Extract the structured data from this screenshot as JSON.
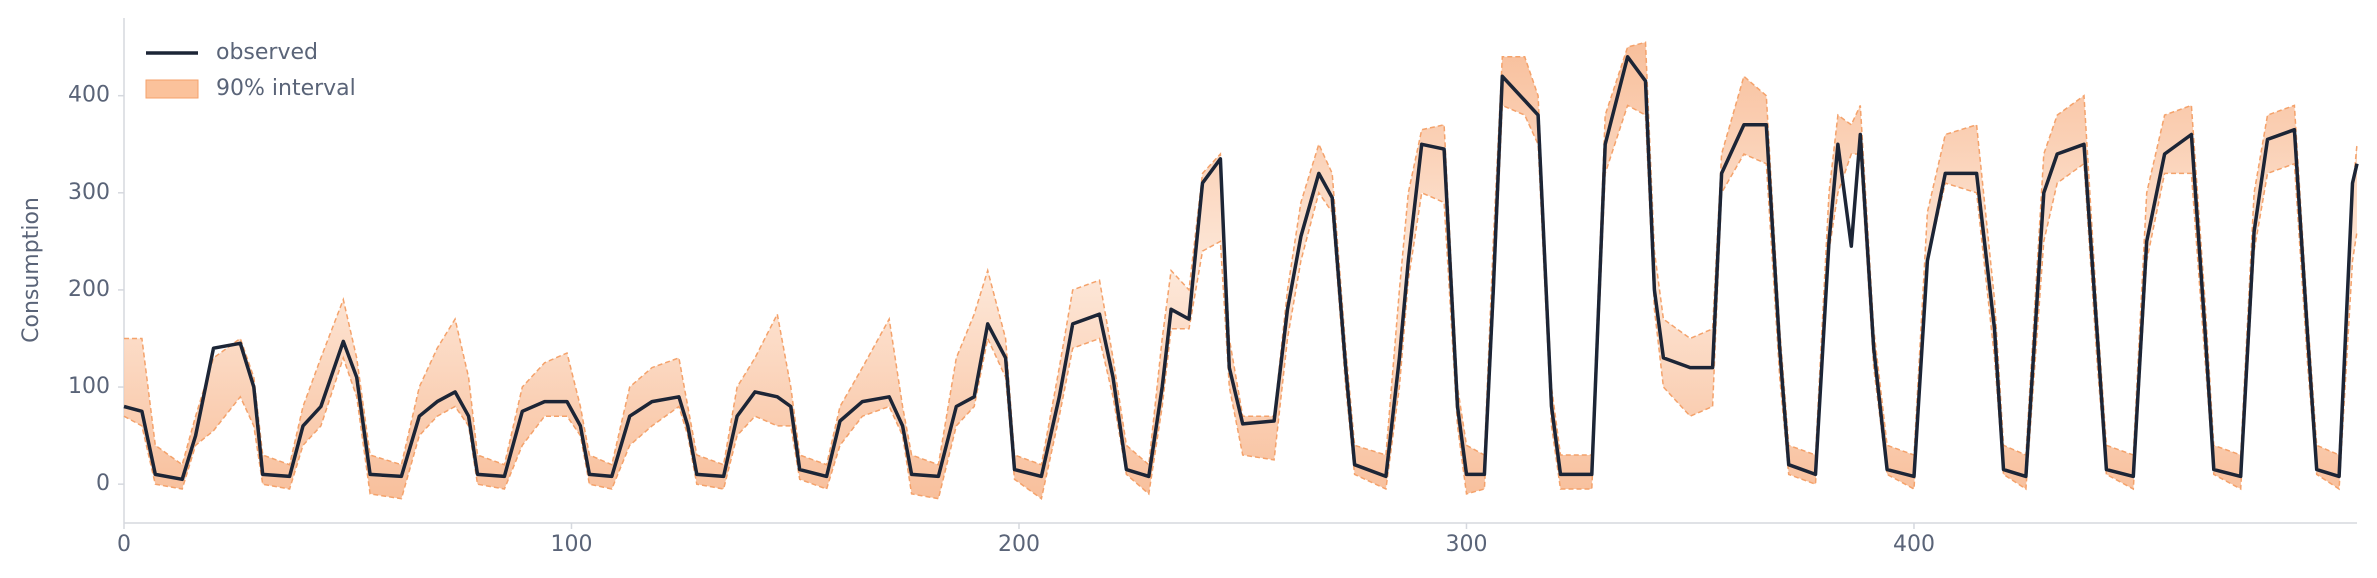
{
  "chart_data": {
    "type": "line_interval",
    "y_label": "Consumption",
    "xlim": [
      0,
      499
    ],
    "ylim": [
      -40,
      480
    ],
    "xticks": [
      0,
      100,
      200,
      300,
      400
    ],
    "yticks": [
      0,
      100,
      200,
      300,
      400
    ],
    "legend": "upper left",
    "x": [
      0,
      4,
      7,
      13,
      16,
      20,
      26,
      29,
      31,
      37,
      40,
      44,
      49,
      52,
      55,
      62,
      66,
      70,
      74,
      77,
      79,
      85,
      89,
      94,
      99,
      102,
      104,
      109,
      113,
      118,
      124,
      126,
      128,
      134,
      137,
      141,
      146,
      149,
      151,
      157,
      160,
      165,
      171,
      174,
      176,
      182,
      186,
      190,
      193,
      197,
      199,
      205,
      209,
      212,
      218,
      221,
      224,
      229,
      232,
      234,
      238,
      241,
      245,
      247,
      250,
      257,
      260,
      263,
      267,
      270,
      273,
      275,
      282,
      285,
      287,
      290,
      295,
      298,
      300,
      304,
      306,
      308,
      313,
      316,
      319,
      321,
      328,
      331,
      336,
      340,
      342,
      344,
      350,
      355,
      357,
      362,
      367,
      370,
      372,
      378,
      381,
      383,
      386,
      388,
      391,
      394,
      400,
      403,
      407,
      414,
      418,
      420,
      425,
      429,
      432,
      438,
      441,
      443,
      449,
      452,
      456,
      462,
      465,
      467,
      473,
      476,
      479,
      485,
      488,
      490,
      495,
      498,
      499
    ],
    "series": [
      {
        "name": "observed",
        "color": "#1c2536",
        "values": [
          80,
          75,
          10,
          5,
          50,
          140,
          145,
          100,
          10,
          8,
          60,
          80,
          147,
          110,
          10,
          8,
          70,
          85,
          95,
          70,
          10,
          8,
          75,
          85,
          85,
          60,
          10,
          8,
          70,
          85,
          90,
          60,
          10,
          8,
          70,
          95,
          90,
          80,
          15,
          8,
          65,
          85,
          90,
          60,
          10,
          8,
          80,
          90,
          165,
          130,
          15,
          8,
          90,
          165,
          175,
          110,
          15,
          8,
          100,
          180,
          170,
          310,
          335,
          120,
          62,
          65,
          180,
          255,
          320,
          295,
          120,
          20,
          8,
          130,
          230,
          350,
          345,
          80,
          10,
          10,
          200,
          420,
          395,
          380,
          80,
          10,
          10,
          350,
          440,
          415,
          200,
          130,
          120,
          120,
          320,
          370,
          370,
          140,
          20,
          10,
          250,
          350,
          245,
          360,
          140,
          15,
          8,
          230,
          320,
          320,
          160,
          15,
          8,
          300,
          340,
          350,
          150,
          15,
          8,
          250,
          340,
          360,
          160,
          15,
          8,
          260,
          355,
          365,
          150,
          15,
          8,
          310,
          330
        ]
      },
      {
        "name": "90% interval",
        "color": "#f4a26b",
        "lower": [
          70,
          60,
          0,
          -5,
          40,
          55,
          90,
          60,
          0,
          -5,
          40,
          60,
          130,
          90,
          -10,
          -15,
          50,
          70,
          80,
          60,
          0,
          -5,
          40,
          70,
          70,
          50,
          0,
          -5,
          40,
          60,
          80,
          50,
          0,
          -5,
          50,
          70,
          60,
          60,
          5,
          -5,
          40,
          70,
          80,
          50,
          -10,
          -15,
          60,
          80,
          150,
          110,
          5,
          -15,
          70,
          140,
          150,
          90,
          10,
          -10,
          80,
          160,
          160,
          240,
          250,
          100,
          30,
          25,
          150,
          230,
          300,
          280,
          100,
          10,
          -5,
          100,
          210,
          300,
          290,
          60,
          -10,
          -5,
          180,
          390,
          380,
          350,
          60,
          -5,
          -5,
          320,
          390,
          380,
          180,
          100,
          70,
          80,
          300,
          340,
          330,
          110,
          10,
          0,
          240,
          300,
          340,
          340,
          120,
          10,
          -5,
          230,
          310,
          300,
          130,
          10,
          -5,
          250,
          310,
          330,
          120,
          10,
          -5,
          230,
          320,
          320,
          130,
          10,
          -5,
          240,
          320,
          330,
          120,
          10,
          -5,
          230,
          260
        ],
        "upper": [
          150,
          150,
          40,
          20,
          70,
          130,
          150,
          110,
          30,
          20,
          80,
          130,
          190,
          130,
          30,
          20,
          100,
          140,
          170,
          110,
          30,
          20,
          100,
          125,
          135,
          80,
          30,
          20,
          100,
          120,
          130,
          80,
          30,
          20,
          100,
          130,
          175,
          100,
          30,
          20,
          80,
          120,
          170,
          80,
          30,
          20,
          130,
          175,
          220,
          150,
          30,
          20,
          120,
          200,
          210,
          130,
          40,
          20,
          150,
          220,
          200,
          320,
          340,
          150,
          70,
          70,
          200,
          290,
          350,
          320,
          140,
          40,
          30,
          200,
          300,
          365,
          370,
          100,
          40,
          30,
          250,
          440,
          440,
          400,
          100,
          30,
          30,
          380,
          450,
          455,
          240,
          170,
          150,
          160,
          340,
          420,
          400,
          160,
          40,
          30,
          300,
          380,
          370,
          390,
          160,
          40,
          30,
          280,
          360,
          370,
          190,
          40,
          30,
          340,
          380,
          400,
          170,
          40,
          30,
          300,
          380,
          390,
          190,
          40,
          30,
          300,
          380,
          390,
          170,
          40,
          30,
          300,
          350
        ]
      }
    ]
  }
}
